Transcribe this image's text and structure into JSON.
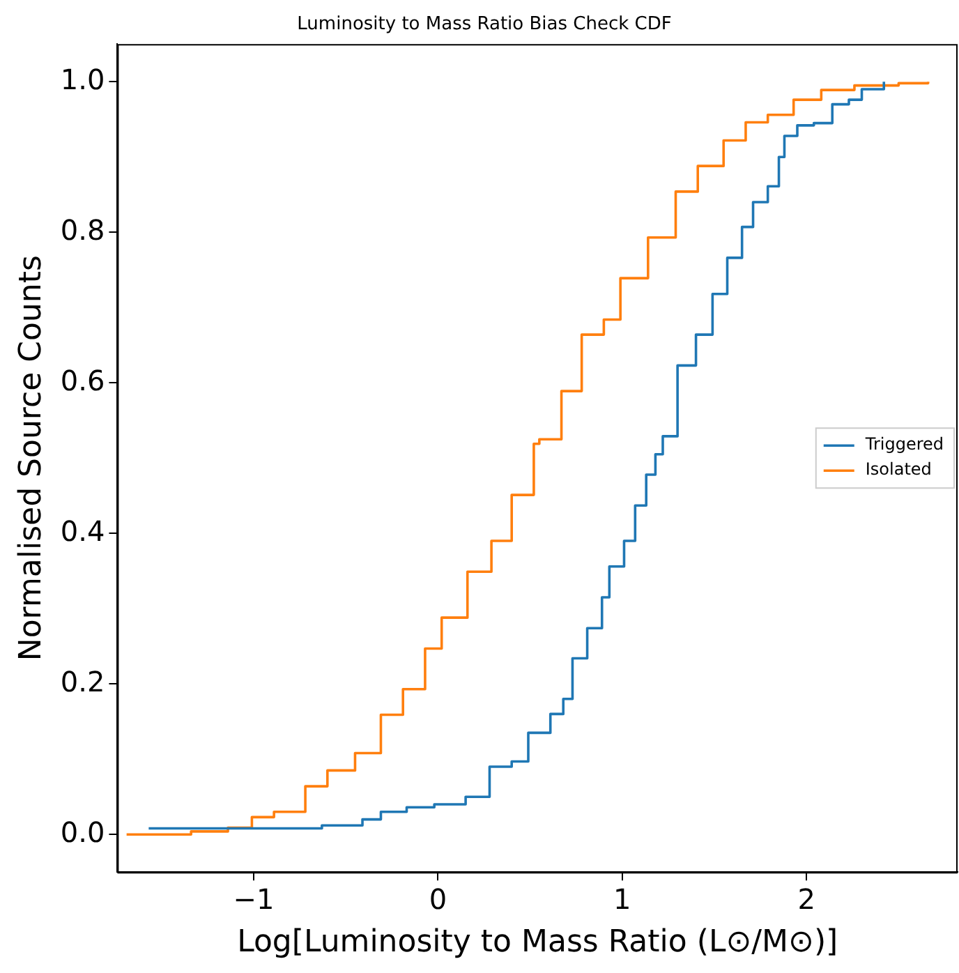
{
  "chart_data": {
    "type": "step",
    "title": "Luminosity to Mass Ratio Bias Check CDF",
    "xlabel": "Log[Luminosity to Mass Ratio (L⊙/M⊙)]",
    "ylabel": "Normalised Source Counts",
    "xlim": [
      -1.74,
      2.82
    ],
    "xticks": [
      {
        "value": -1,
        "label": "−1"
      },
      0,
      1,
      2
    ],
    "ylim": [
      -0.05,
      1.05
    ],
    "yticks": [
      {
        "value": 0,
        "label": "0.0"
      },
      {
        "value": 0.2,
        "label": "0.2"
      },
      {
        "value": 0.4,
        "label": "0.4"
      },
      {
        "value": 0.6,
        "label": "0.6"
      },
      {
        "value": 0.8,
        "label": "0.8"
      },
      {
        "value": 1,
        "label": "1.0"
      }
    ],
    "grid": false,
    "legend": "right",
    "marker": "none",
    "series": [
      {
        "name": "Triggered",
        "color": "#1f77b4",
        "x": [
          -1.57,
          -0.63,
          -0.44,
          -0.41,
          -0.31,
          -0.17,
          -0.02,
          0.15,
          0.28,
          0.4,
          0.49,
          0.61,
          0.68,
          0.73,
          0.81,
          0.89,
          0.93,
          1.01,
          1.07,
          1.13,
          1.18,
          1.22,
          1.3,
          1.4,
          1.49,
          1.57,
          1.65,
          1.71,
          1.79,
          1.85,
          1.88,
          1.95,
          2.04,
          2.14,
          2.23,
          2.3,
          2.42
        ],
        "values": [
          0.008,
          0.012,
          0.012,
          0.02,
          0.03,
          0.036,
          0.04,
          0.05,
          0.09,
          0.097,
          0.135,
          0.16,
          0.18,
          0.234,
          0.274,
          0.315,
          0.356,
          0.39,
          0.437,
          0.478,
          0.505,
          0.529,
          0.623,
          0.664,
          0.718,
          0.766,
          0.807,
          0.84,
          0.861,
          0.9,
          0.928,
          0.942,
          0.945,
          0.97,
          0.976,
          0.99,
          1.0
        ]
      },
      {
        "name": "Isolated",
        "color": "#ff7f0e",
        "x": [
          -1.69,
          -1.34,
          -1.14,
          -1.01,
          -0.89,
          -0.72,
          -0.6,
          -0.45,
          -0.31,
          -0.19,
          -0.07,
          0.02,
          0.16,
          0.29,
          0.4,
          0.52,
          0.55,
          0.67,
          0.78,
          0.9,
          0.99,
          1.14,
          1.29,
          1.41,
          1.55,
          1.67,
          1.79,
          1.93,
          2.08,
          2.26,
          2.5,
          2.66
        ],
        "values": [
          0.0,
          0.004,
          0.009,
          0.023,
          0.03,
          0.064,
          0.085,
          0.108,
          0.159,
          0.193,
          0.247,
          0.288,
          0.349,
          0.39,
          0.451,
          0.519,
          0.525,
          0.589,
          0.664,
          0.684,
          0.739,
          0.793,
          0.854,
          0.888,
          0.922,
          0.946,
          0.956,
          0.976,
          0.989,
          0.995,
          0.998,
          1.0
        ]
      }
    ]
  }
}
